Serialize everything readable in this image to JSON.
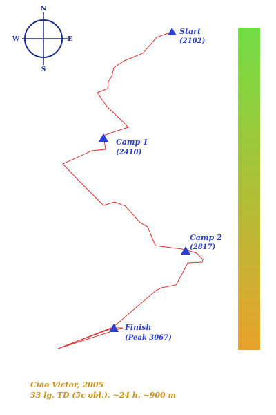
{
  "compass": {
    "north": "N",
    "south": "S",
    "east": "E",
    "west": "W"
  },
  "waypoints": [
    {
      "name": "Start",
      "detail": "(2102)"
    },
    {
      "name": "Camp 1",
      "detail": "(2410)"
    },
    {
      "name": "Camp 2",
      "detail": "(2817)"
    },
    {
      "name": "Finish",
      "detail": "(Peak 3067)"
    }
  ],
  "elevation_bar": {
    "top_color": "#72dd44",
    "bottom_color": "#e8a22a"
  },
  "route_color": "#e03030",
  "marker_color": "#2b3fd0",
  "credits": {
    "line1": "Ciao Victor, 2005",
    "line2": "33 lg, TD (5c obl.), ~24 h, ~900 m"
  }
}
